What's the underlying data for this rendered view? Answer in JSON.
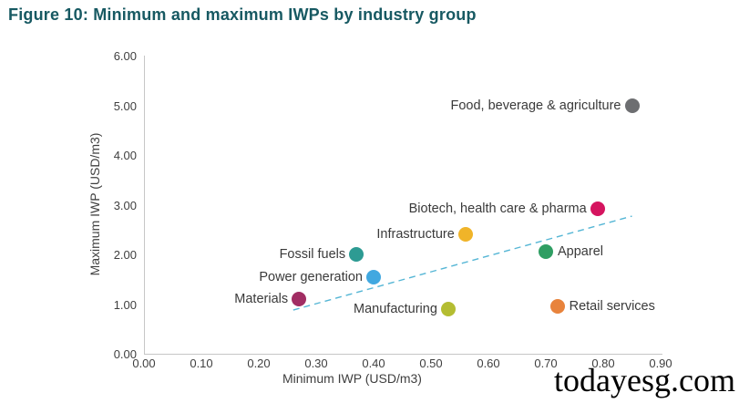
{
  "title": "Figure 10: Minimum and maximum IWPs by industry group",
  "watermark": "todayesg.com",
  "colors": {
    "title": "#175962",
    "axis_line": "#c6c6c6",
    "tick_text": "#3f3f3f",
    "trendline": "#55b6d5"
  },
  "chart_data": {
    "type": "scatter",
    "title": "Figure 10: Minimum and maximum IWPs by industry group",
    "xlabel": "Minimum IWP (USD/m3)",
    "ylabel": "Maximum IWP (USD/m3)",
    "xlim": [
      0.0,
      0.9
    ],
    "ylim": [
      0.0,
      6.0
    ],
    "grid": false,
    "x_tick_labels": [
      "0.00",
      "0.10",
      "0.20",
      "0.30",
      "0.40",
      "0.50",
      "0.60",
      "0.70",
      "0.80",
      "0.90"
    ],
    "y_tick_labels": [
      "0.00",
      "1.00",
      "2.00",
      "3.00",
      "4.00",
      "5.00",
      "6.00"
    ],
    "points": [
      {
        "label": "Food, beverage & agriculture",
        "x": 0.85,
        "y": 5.0,
        "color": "#6d6e71",
        "label_side": "left"
      },
      {
        "label": "Biotech, health care & pharma",
        "x": 0.79,
        "y": 2.92,
        "color": "#d5145f",
        "label_side": "left"
      },
      {
        "label": "Infrastructure",
        "x": 0.56,
        "y": 2.4,
        "color": "#f0b429",
        "label_side": "left"
      },
      {
        "label": "Fossil fuels",
        "x": 0.37,
        "y": 2.0,
        "color": "#2d9b93",
        "label_side": "left"
      },
      {
        "label": "Apparel",
        "x": 0.7,
        "y": 2.05,
        "color": "#2f9e63",
        "label_side": "right"
      },
      {
        "label": "Power generation",
        "x": 0.4,
        "y": 1.55,
        "color": "#41a8e0",
        "label_side": "left"
      },
      {
        "label": "Materials",
        "x": 0.27,
        "y": 1.1,
        "color": "#a12d63",
        "label_side": "left"
      },
      {
        "label": "Manufacturing",
        "x": 0.53,
        "y": 0.9,
        "color": "#b4bd32",
        "label_side": "left"
      },
      {
        "label": "Retail services",
        "x": 0.72,
        "y": 0.95,
        "color": "#e8833c",
        "label_side": "right"
      }
    ],
    "trendline": {
      "style": "dashed",
      "x1": 0.26,
      "y1": 0.88,
      "x2": 0.85,
      "y2": 2.77
    }
  }
}
